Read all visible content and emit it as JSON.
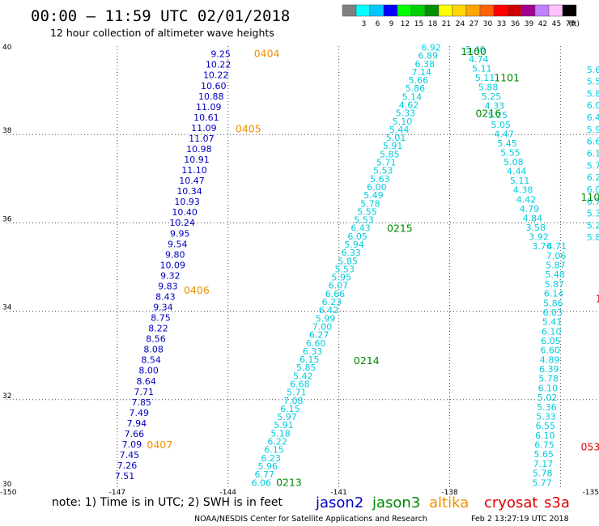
{
  "header": {
    "title": "00:00 – 11:59 UTC 02/01/2018",
    "subtitle": "12 hour collection of altimeter wave heights"
  },
  "color_scale": {
    "unit": "(ft)",
    "bins": [
      {
        "label": "",
        "color": "#7f7f7f"
      },
      {
        "label": "3",
        "color": "#00ffff"
      },
      {
        "label": "6",
        "color": "#00c8ff"
      },
      {
        "label": "9",
        "color": "#0000ff"
      },
      {
        "label": "12",
        "color": "#00ff00"
      },
      {
        "label": "15",
        "color": "#00d000"
      },
      {
        "label": "18",
        "color": "#009000"
      },
      {
        "label": "21",
        "color": "#ffff00"
      },
      {
        "label": "24",
        "color": "#ffd700"
      },
      {
        "label": "27",
        "color": "#ffa500"
      },
      {
        "label": "30",
        "color": "#ff6000"
      },
      {
        "label": "33",
        "color": "#ff0000"
      },
      {
        "label": "36",
        "color": "#d00000"
      },
      {
        "label": "39",
        "color": "#a00090"
      },
      {
        "label": "42",
        "color": "#c080ff"
      },
      {
        "label": "45",
        "color": "#ffc0ff"
      },
      {
        "label": "70",
        "color": "#000000"
      }
    ]
  },
  "map": {
    "lon_range": [
      -150,
      -134
    ],
    "lat_range": [
      30,
      40
    ],
    "lon_ticks": [
      "-150",
      "-147",
      "-144",
      "-141",
      "-138",
      "-135"
    ],
    "lat_ticks": [
      "30",
      "32",
      "34",
      "36",
      "38",
      "40"
    ],
    "grid_lons": [
      -147,
      -144,
      -141,
      -138,
      -135
    ],
    "grid_lats": [
      32,
      34,
      36,
      38
    ]
  },
  "track_colors": {
    "jason2": "#0000c0",
    "jason3": "#00ccdd",
    "altika": "#f09000",
    "cryosat": "#e00000",
    "s3a": "#e00000",
    "green": "#008800"
  },
  "tracks": [
    {
      "name": "altika-descending",
      "color_key": "jason2",
      "start": [
        -144.2,
        39.75
      ],
      "end": [
        -146.8,
        30.2
      ],
      "values": [
        "9.25",
        "10.22",
        "10.22",
        "10.60",
        "10.88",
        "11.09",
        "10.61",
        "11.09",
        "11.07",
        "10.98",
        "10.91",
        "11.10",
        "10.47",
        "10.34",
        "10.93",
        "10.40",
        "10.24",
        "9.95",
        "9.54",
        "9.80",
        "10.09",
        "9.32",
        "9.83",
        "8.43",
        "9.34",
        "8.75",
        "8.22",
        "8.56",
        "8.08",
        "8.54",
        "8.00",
        "8.64",
        "7.71",
        "7.85",
        "7.49",
        "7.94",
        "7.66",
        "7.09",
        "7.45",
        "7.26",
        "7.51"
      ]
    },
    {
      "name": "jason3-ascending",
      "color_key": "jason3",
      "start": [
        -143.1,
        30.05
      ],
      "end": [
        -138.5,
        39.9
      ],
      "values": [
        "6.06",
        "6.77",
        "5.96",
        "6.23",
        "6.15",
        "6.22",
        "5.18",
        "5.91",
        "5.97",
        "6.15",
        "7.08",
        "5.71",
        "6.68",
        "5.42",
        "5.85",
        "6.15",
        "6.33",
        "6.60",
        "6.27",
        "7.00",
        "5.99",
        "6.42",
        "6.23",
        "6.66",
        "6.07",
        "5.95",
        "5.53",
        "5.85",
        "6.33",
        "5.94",
        "6.05",
        "6.43",
        "5.53",
        "5.55",
        "5.78",
        "5.49",
        "6.00",
        "5.63",
        "5.53",
        "5.71",
        "5.85",
        "5.91",
        "5.01",
        "5.44",
        "5.10",
        "5.33",
        "4.62",
        "5.14",
        "5.86",
        "5.66",
        "7.14",
        "6.38",
        "6.89",
        "6.92"
      ]
    },
    {
      "name": "jason3-descending",
      "color_key": "jason3",
      "start": [
        -137.3,
        39.85
      ],
      "end": [
        -135.5,
        35.4
      ],
      "values": [
        "5.40",
        "4.74",
        "5.11",
        "5.11",
        "5.88",
        "5.25",
        "4.33",
        "5.25",
        "5.05",
        "4.47",
        "5.45",
        "5.55",
        "5.08",
        "4.44",
        "5.11",
        "4.38",
        "4.42",
        "4.79",
        "4.84",
        "3.58",
        "3.92",
        "3.76"
      ]
    },
    {
      "name": "jason3-descending-lower",
      "color_key": "jason3",
      "start": [
        -135.1,
        35.4
      ],
      "end": [
        -135.5,
        30.05
      ],
      "values": [
        "4.71",
        "7.06",
        "5.87",
        "5.48",
        "5.87",
        "6.14",
        "5.86",
        "6.03",
        "5.41",
        "6.10",
        "6.05",
        "6.60",
        "4.89",
        "6.39",
        "5.78",
        "6.10",
        "5.02",
        "5.36",
        "5.33",
        "6.55",
        "6.10",
        "6.75",
        "5.65",
        "7.17",
        "5.78",
        "5.77"
      ]
    },
    {
      "name": "edge-track",
      "color_key": "jason3",
      "start": [
        -134.1,
        39.4
      ],
      "end": [
        -134.1,
        35.6
      ],
      "values": [
        "5.6",
        "5.5",
        "5.8",
        "6.0",
        "6.4",
        "5.9",
        "6.6",
        "6.1",
        "5.7",
        "6.2",
        "6.0",
        "6.7",
        "5.3",
        "5.2",
        "5.8"
      ]
    }
  ],
  "time_stamps": [
    {
      "text": "0404",
      "color_key": "altika",
      "lon": -143.3,
      "lat": 39.75
    },
    {
      "text": "0405",
      "color_key": "altika",
      "lon": -143.8,
      "lat": 38.05
    },
    {
      "text": "0406",
      "color_key": "altika",
      "lon": -145.2,
      "lat": 34.4
    },
    {
      "text": "0407",
      "color_key": "altika",
      "lon": -146.2,
      "lat": 30.9
    },
    {
      "text": "1100",
      "color_key": "green",
      "lon": -137.7,
      "lat": 39.8
    },
    {
      "text": "1101",
      "color_key": "green",
      "lon": -136.8,
      "lat": 39.2
    },
    {
      "text": "0216",
      "color_key": "green",
      "lon": -137.3,
      "lat": 38.4
    },
    {
      "text": "0215",
      "color_key": "green",
      "lon": -139.7,
      "lat": 35.8
    },
    {
      "text": "0214",
      "color_key": "green",
      "lon": -140.6,
      "lat": 32.8
    },
    {
      "text": "0213",
      "color_key": "green",
      "lon": -142.7,
      "lat": 30.05
    },
    {
      "text": "110",
      "color_key": "green",
      "lon": -134.45,
      "lat": 36.5
    },
    {
      "text": "053",
      "color_key": "cryosat",
      "lon": -134.45,
      "lat": 30.85
    },
    {
      "text": "1",
      "color_key": "cryosat",
      "lon": -134.05,
      "lat": 34.2
    }
  ],
  "footer": {
    "note": "note:  1) Time is in UTC;  2) SWH is in feet",
    "legend": [
      {
        "label": "jason2",
        "color_key": "jason2"
      },
      {
        "label": "jason3",
        "color_key": "green"
      },
      {
        "label": "altika",
        "color_key": "altika"
      },
      {
        "label": "cryosat",
        "color_key": "cryosat"
      },
      {
        "label": "s3a",
        "color_key": "cryosat"
      }
    ],
    "credit": "NOAA/NESDIS Center for Satellite Applications and Research",
    "generated": "Feb  2 13:27:19 UTC 2018"
  }
}
